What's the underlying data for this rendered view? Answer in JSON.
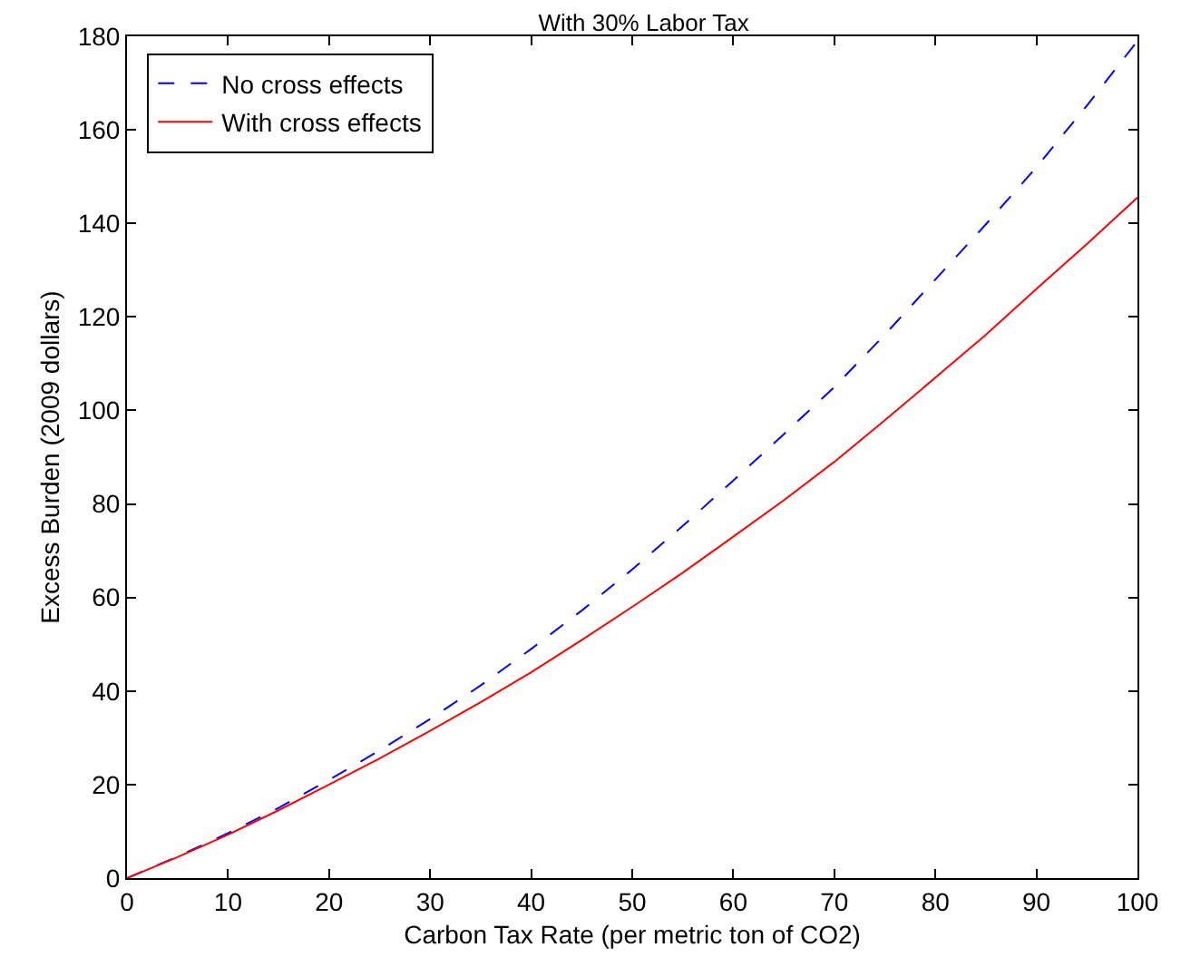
{
  "chart_data": {
    "type": "line",
    "title": "With 30% Labor Tax",
    "xlabel": "Carbon Tax Rate (per metric ton of CO2)",
    "ylabel": "Excess Burden (2009 dollars)",
    "x": [
      0,
      5,
      10,
      15,
      20,
      25,
      30,
      35,
      40,
      45,
      50,
      55,
      60,
      65,
      70,
      75,
      80,
      85,
      90,
      95,
      100
    ],
    "series": [
      {
        "name": "No cross effects",
        "color": "#0000ff",
        "line_style": "dashed",
        "values": [
          0,
          4.6,
          9.6,
          15,
          21,
          27.3,
          34,
          41.2,
          49,
          57.2,
          66,
          75.3,
          85,
          94.9,
          105,
          116.2,
          128,
          139.8,
          152,
          165.2,
          179
        ]
      },
      {
        "name": "With cross effects",
        "color": "#ff0000",
        "line_style": "solid",
        "values": [
          0,
          4.5,
          9.3,
          14.5,
          20,
          25.6,
          31.5,
          37.6,
          44,
          50.9,
          58,
          65.3,
          73,
          80.8,
          89,
          97.9,
          107,
          116.2,
          126,
          135.6,
          145.5
        ]
      }
    ],
    "xlim": [
      0,
      100
    ],
    "xticks": [
      0,
      10,
      20,
      30,
      40,
      50,
      60,
      70,
      80,
      90,
      100
    ],
    "ylim": [
      0,
      180
    ],
    "yticks": [
      0,
      20,
      40,
      60,
      80,
      100,
      120,
      140,
      160,
      180
    ],
    "grid": false,
    "legend": "top left",
    "marker": "none"
  }
}
